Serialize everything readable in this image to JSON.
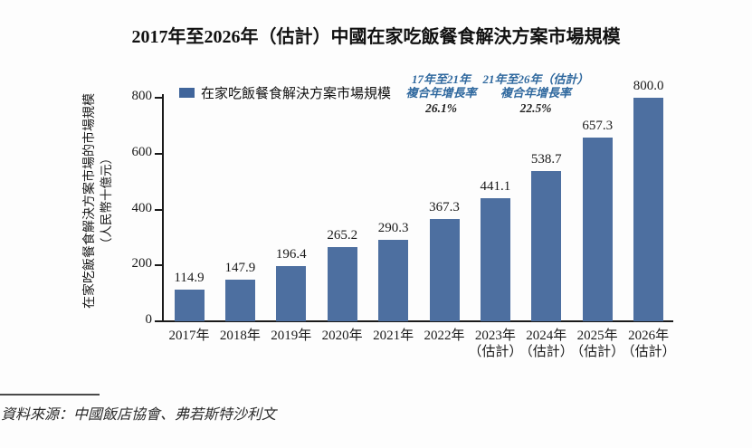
{
  "title": "2017年至2026年（估計）中國在家吃飯餐食解決方案市場規模",
  "chart_data": {
    "type": "bar",
    "title": "2017年至2026年（估計）中國在家吃飯餐食解決方案市場規模",
    "legend_label": "在家吃飯餐食解決方案市場規模",
    "legend_position": "top-left",
    "categories": [
      "2017年",
      "2018年",
      "2019年",
      "2020年",
      "2021年",
      "2022年",
      "2023年（估計）",
      "2024年（估計）",
      "2025年（估計）",
      "2026年（估計）"
    ],
    "category_lines": [
      [
        "2017年"
      ],
      [
        "2018年"
      ],
      [
        "2019年"
      ],
      [
        "2020年"
      ],
      [
        "2021年"
      ],
      [
        "2022年"
      ],
      [
        "2023年",
        "（估計）"
      ],
      [
        "2024年",
        "（估計）"
      ],
      [
        "2025年",
        "（估計）"
      ],
      [
        "2026年",
        "（估計）"
      ]
    ],
    "values": [
      114.9,
      147.9,
      196.4,
      265.2,
      290.3,
      367.3,
      441.1,
      538.7,
      657.3,
      800.0
    ],
    "value_labels": [
      "114.9",
      "147.9",
      "196.4",
      "265.2",
      "290.3",
      "367.3",
      "441.1",
      "538.7",
      "657.3",
      "800.0"
    ],
    "xlabel": "",
    "ylabel_lines": [
      "在家吃飯餐食解決方案市場的市場規模",
      "（人民幣十億元）"
    ],
    "yticks": [
      0,
      200,
      400,
      600,
      800
    ],
    "ylim": [
      0,
      800
    ],
    "grid": false,
    "annotations": [
      {
        "line1": "17年至21年",
        "line2": "複合年增長率",
        "value": "26.1%"
      },
      {
        "line1": "21年至26年（估計）",
        "line2": "複合年增長率",
        "value": "22.5%"
      }
    ]
  },
  "source": "資料來源：中國飯店協會、弗若斯特沙利文",
  "colors": {
    "bar": "#4d6fa0",
    "legend_swatch": "#40659b",
    "annotation_text": "#2f689e",
    "annotation_value": "#1f1f1f",
    "axis": "#1a1a1a"
  }
}
